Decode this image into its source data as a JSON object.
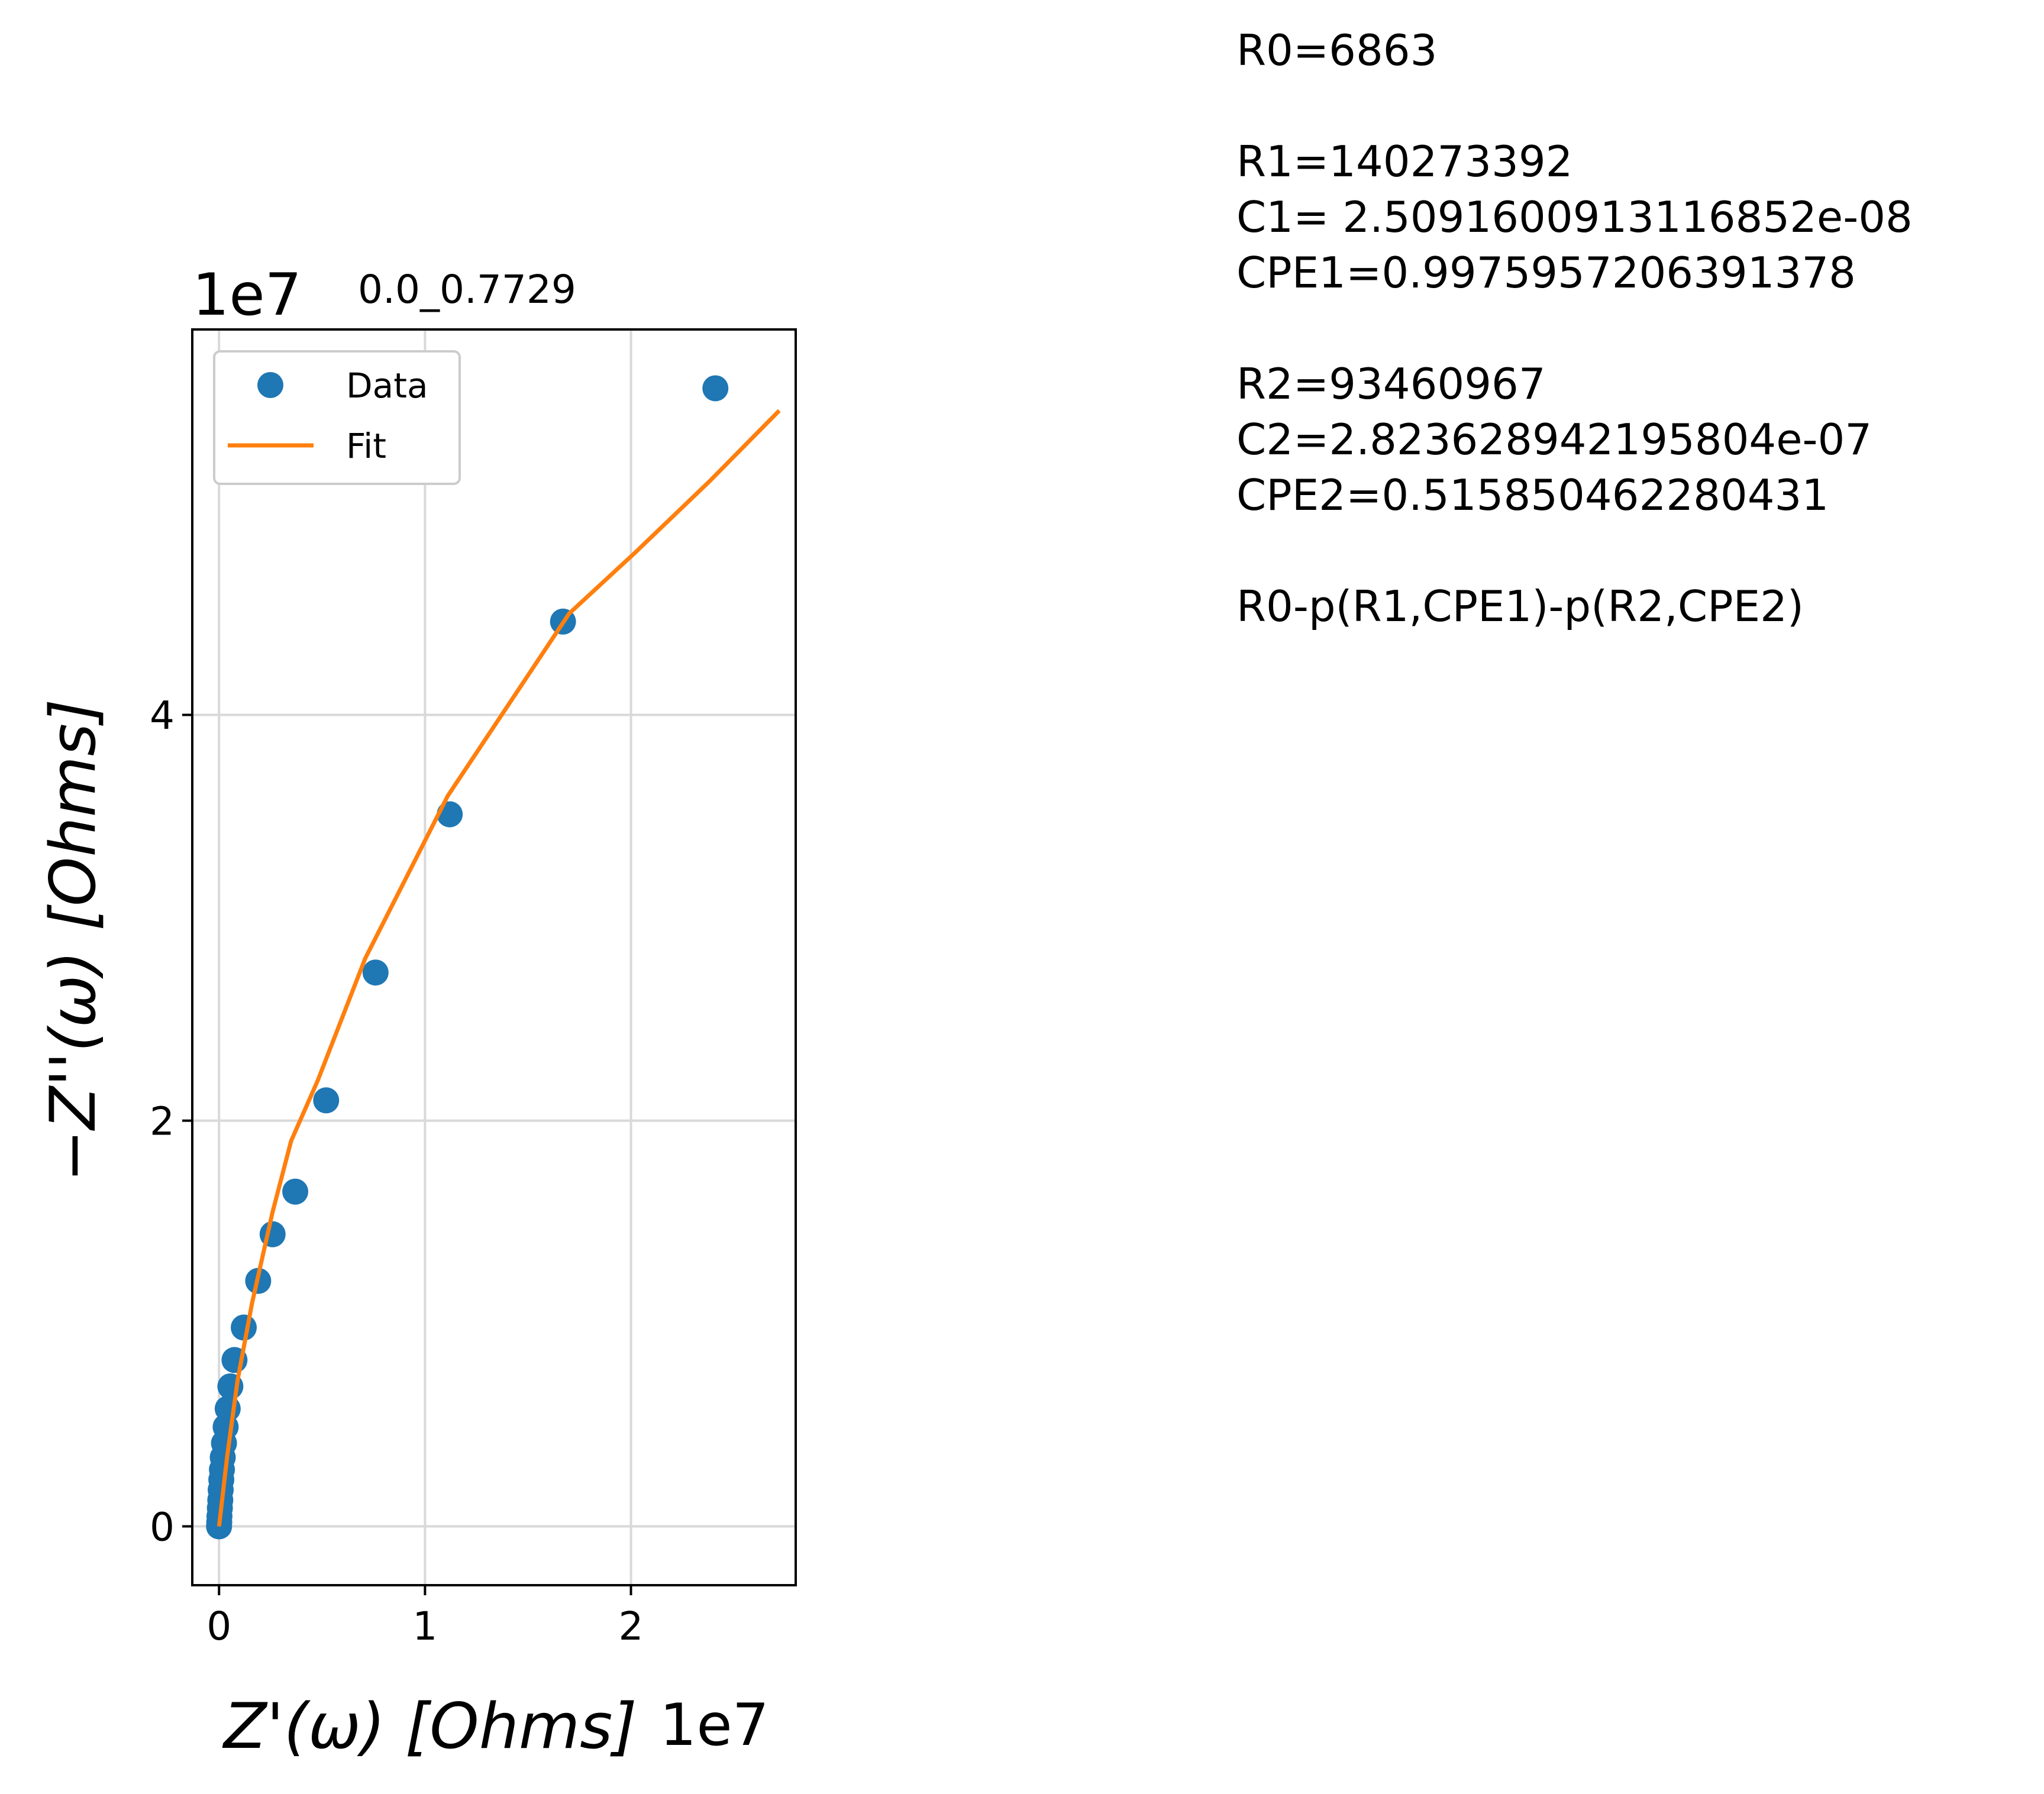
{
  "chart_data": {
    "type": "scatter",
    "title": "0.0_0.7729",
    "xlabel": "Z'(ω) [Ohms]",
    "ylabel": "−Z''(ω) [Ohms]",
    "x_offset_label": "1e7",
    "y_offset_label": "1e7",
    "x_scale": 10000000,
    "y_scale": 10000000,
    "xlim": [
      -0.13,
      2.8
    ],
    "ylim": [
      -0.29,
      5.9
    ],
    "x_ticks": [
      {
        "value": 0,
        "label": "0"
      },
      {
        "value": 1,
        "label": "1"
      },
      {
        "value": 2,
        "label": "2"
      }
    ],
    "y_ticks": [
      {
        "value": 0,
        "label": "0"
      },
      {
        "value": 2,
        "label": "2"
      },
      {
        "value": 4,
        "label": "4"
      }
    ],
    "grid": true,
    "legend": {
      "placement": "top-left",
      "entries": [
        {
          "label": "Data",
          "color": "#1f77b4",
          "marker": "circle"
        },
        {
          "label": "Fit",
          "color": "#ff7f0e",
          "marker": "line"
        }
      ]
    },
    "series": [
      {
        "name": "Data",
        "kind": "scatter",
        "color": "#1f77b4",
        "x": [
          0.0,
          0.001,
          0.002,
          0.004,
          0.006,
          0.008,
          0.011,
          0.014,
          0.018,
          0.024,
          0.032,
          0.042,
          0.055,
          0.075,
          0.12,
          0.19,
          0.26,
          0.37,
          0.52,
          0.76,
          1.12,
          1.67,
          2.41
        ],
        "y": [
          0.0,
          0.02,
          0.05,
          0.09,
          0.13,
          0.18,
          0.23,
          0.28,
          0.34,
          0.41,
          0.49,
          0.58,
          0.69,
          0.82,
          0.98,
          1.21,
          1.44,
          1.65,
          2.1,
          2.73,
          3.51,
          4.46,
          5.61
        ]
      },
      {
        "name": "Fit",
        "kind": "line",
        "color": "#ff7f0e",
        "x": [
          0.0,
          0.04,
          0.09,
          0.16,
          0.26,
          0.35,
          0.48,
          0.71,
          1.11,
          1.7,
          2.02,
          2.38,
          2.72
        ],
        "y": [
          0.0,
          0.35,
          0.72,
          1.1,
          1.55,
          1.9,
          2.2,
          2.8,
          3.6,
          4.5,
          4.8,
          5.15,
          5.5
        ]
      }
    ]
  },
  "params": [
    "R0=6863",
    "",
    "R1=140273392",
    "C1= 2.5091600913116852e-08",
    "CPE1=0.9975957206391378",
    "",
    "R2=93460967",
    "C2=2.823628942195804e-07",
    "CPE2=0.515850462280431",
    "",
    "R0-p(R1,CPE1)-p(R2,CPE2)"
  ]
}
